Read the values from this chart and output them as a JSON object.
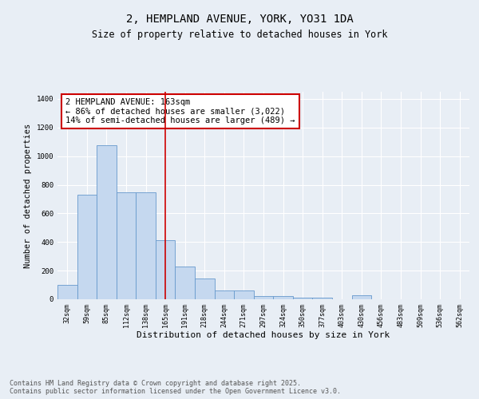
{
  "title_line1": "2, HEMPLAND AVENUE, YORK, YO31 1DA",
  "title_line2": "Size of property relative to detached houses in York",
  "xlabel": "Distribution of detached houses by size in York",
  "ylabel": "Number of detached properties",
  "categories": [
    "32sqm",
    "59sqm",
    "85sqm",
    "112sqm",
    "138sqm",
    "165sqm",
    "191sqm",
    "218sqm",
    "244sqm",
    "271sqm",
    "297sqm",
    "324sqm",
    "350sqm",
    "377sqm",
    "403sqm",
    "430sqm",
    "456sqm",
    "483sqm",
    "509sqm",
    "536sqm",
    "562sqm"
  ],
  "values": [
    100,
    730,
    1075,
    750,
    750,
    410,
    230,
    145,
    60,
    60,
    25,
    25,
    10,
    10,
    0,
    30,
    0,
    0,
    0,
    0,
    0
  ],
  "bar_color": "#c5d8ef",
  "bar_edge_color": "#6699cc",
  "bar_width": 1.0,
  "vline_x": 5.0,
  "vline_color": "#cc0000",
  "annotation_text": "2 HEMPLAND AVENUE: 163sqm\n← 86% of detached houses are smaller (3,022)\n14% of semi-detached houses are larger (489) →",
  "ylim": [
    0,
    1450
  ],
  "yticks": [
    0,
    200,
    400,
    600,
    800,
    1000,
    1200,
    1400
  ],
  "bg_color": "#e8eef5",
  "plot_bg_color": "#e8eef5",
  "footer_text": "Contains HM Land Registry data © Crown copyright and database right 2025.\nContains public sector information licensed under the Open Government Licence v3.0.",
  "title_fontsize": 10,
  "subtitle_fontsize": 8.5,
  "annotation_fontsize": 7.5,
  "ylabel_fontsize": 7.5,
  "xlabel_fontsize": 8,
  "tick_fontsize": 6,
  "footer_fontsize": 6
}
